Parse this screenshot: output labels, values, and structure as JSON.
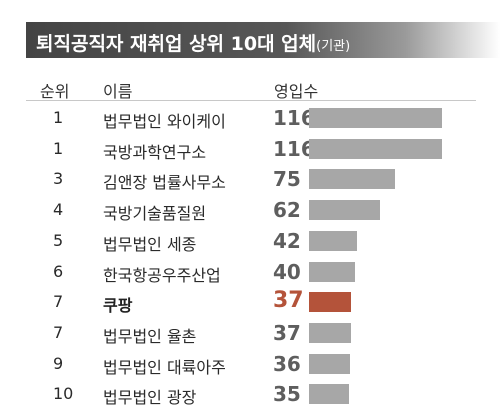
{
  "title": {
    "main": "퇴직공직자 재취업 상위 10대 업체",
    "note": "(기관)"
  },
  "headers": {
    "rank": "순위",
    "name": "이름",
    "value": "영입수"
  },
  "colors": {
    "bar": "#a7a7a7",
    "highlight": "#b4533a",
    "value_text": "#5e5e5e"
  },
  "chart_data": {
    "type": "bar",
    "orientation": "horizontal",
    "title": "퇴직공직자 재취업 상위 10대 업체(기관)",
    "ranks": [
      "1",
      "1",
      "3",
      "4",
      "5",
      "6",
      "7",
      "7",
      "9",
      "10"
    ],
    "categories": [
      "법무법인 와이케이",
      "국방과학연구소",
      "김앤장 법률사무소",
      "국방기술품질원",
      "법무법인 세종",
      "한국항공우주산업",
      "쿠팡",
      "법무법인 율촌",
      "법무법인 대륙아주",
      "법무법인 광장"
    ],
    "values": [
      116,
      116,
      75,
      62,
      42,
      40,
      37,
      37,
      36,
      35
    ],
    "highlight_index": 6,
    "xlim": [
      0,
      116
    ]
  }
}
